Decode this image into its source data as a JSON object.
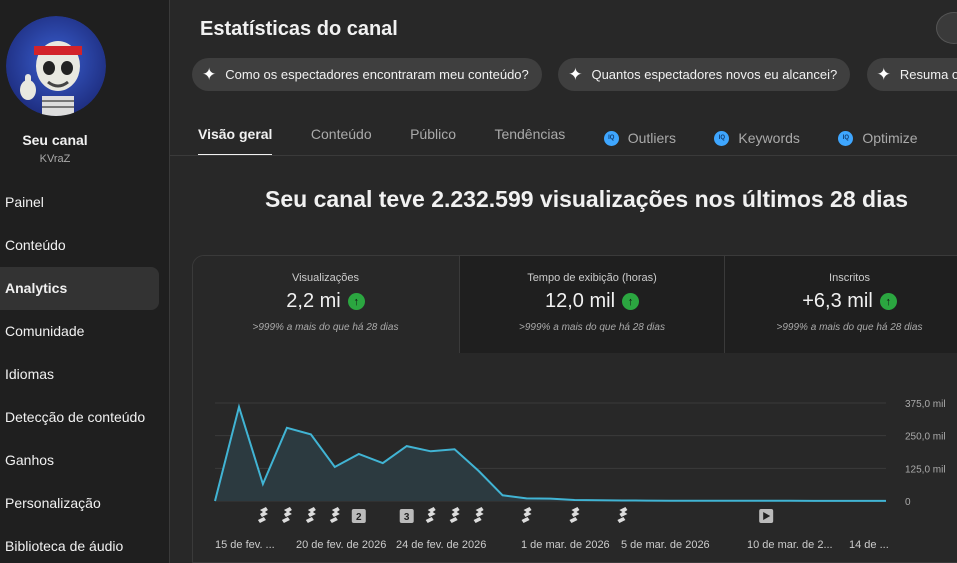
{
  "sidebar": {
    "channel_name": "Seu canal",
    "channel_handle": "KVraZ",
    "items": [
      {
        "label": "Painel"
      },
      {
        "label": "Conteúdo"
      },
      {
        "label": "Analytics",
        "active": true
      },
      {
        "label": "Comunidade"
      },
      {
        "label": "Idiomas"
      },
      {
        "label": "Detecção de conteúdo"
      },
      {
        "label": "Ganhos"
      },
      {
        "label": "Personalização"
      },
      {
        "label": "Biblioteca de áudio"
      }
    ]
  },
  "header": {
    "title": "Estatísticas do canal",
    "chips": [
      "Como os espectadores encontraram meu conteúdo?",
      "Quantos espectadores novos eu alcancei?",
      "Resuma o d"
    ]
  },
  "tabs": [
    {
      "label": "Visão geral",
      "active": true
    },
    {
      "label": "Conteúdo"
    },
    {
      "label": "Público"
    },
    {
      "label": "Tendências"
    },
    {
      "label": "Outliers",
      "badge": "IQ"
    },
    {
      "label": "Keywords",
      "badge": "IQ"
    },
    {
      "label": "Optimize",
      "badge": "IQ"
    }
  ],
  "headline": "Seu canal teve 2.232.599 visualizações nos últimos 28 dias",
  "metrics": [
    {
      "label": "Visualizações",
      "value": "2,2 mi",
      "delta": ">999% a mais do que há 28 dias"
    },
    {
      "label": "Tempo de exibição (horas)",
      "value": "12,0 mil",
      "delta": ">999% a mais do que há 28 dias"
    },
    {
      "label": "Inscritos",
      "value": "+6,3 mil",
      "delta": ">999% a mais do que há 28 dias"
    }
  ],
  "colors": {
    "line": "#41b4d4",
    "area": "#2c3a40",
    "positive": "#2ba640",
    "iq_badge": "#3ea6ff"
  },
  "chart_data": {
    "type": "area",
    "y_ticks": [
      "375,0 mil",
      "250,0 mil",
      "125,0 mil",
      "0"
    ],
    "ylim": [
      0,
      375000
    ],
    "x_tick_labels": [
      "15 de fev. ...",
      "20 de fev. de 2026",
      "24 de fev. de 2026",
      "1 de mar. de 2026",
      "5 de mar. de 2026",
      "10 de mar. de 2...",
      "14 de ..."
    ],
    "series": [
      {
        "values": [
          0,
          360000,
          65000,
          280000,
          255000,
          130000,
          180000,
          145000,
          210000,
          190000,
          198000,
          115000,
          22000,
          10000,
          9000,
          4000,
          3000,
          2000,
          1500,
          1200,
          1000,
          900,
          800,
          700,
          600,
          550,
          500,
          450,
          400
        ]
      }
    ],
    "markers": [
      {
        "day": 2,
        "icon": "shorts-icon"
      },
      {
        "day": 3,
        "icon": "shorts-icon"
      },
      {
        "day": 4,
        "icon": "shorts-icon"
      },
      {
        "day": 5,
        "icon": "shorts-icon"
      },
      {
        "day": 6,
        "icon": "count-badge",
        "label": "2"
      },
      {
        "day": 8,
        "icon": "count-badge",
        "label": "3"
      },
      {
        "day": 9,
        "icon": "shorts-icon"
      },
      {
        "day": 10,
        "icon": "shorts-icon"
      },
      {
        "day": 11,
        "icon": "shorts-icon"
      },
      {
        "day": 13,
        "icon": "shorts-icon"
      },
      {
        "day": 15,
        "icon": "shorts-icon"
      },
      {
        "day": 17,
        "icon": "shorts-icon"
      },
      {
        "day": 23,
        "icon": "video-icon"
      }
    ]
  }
}
